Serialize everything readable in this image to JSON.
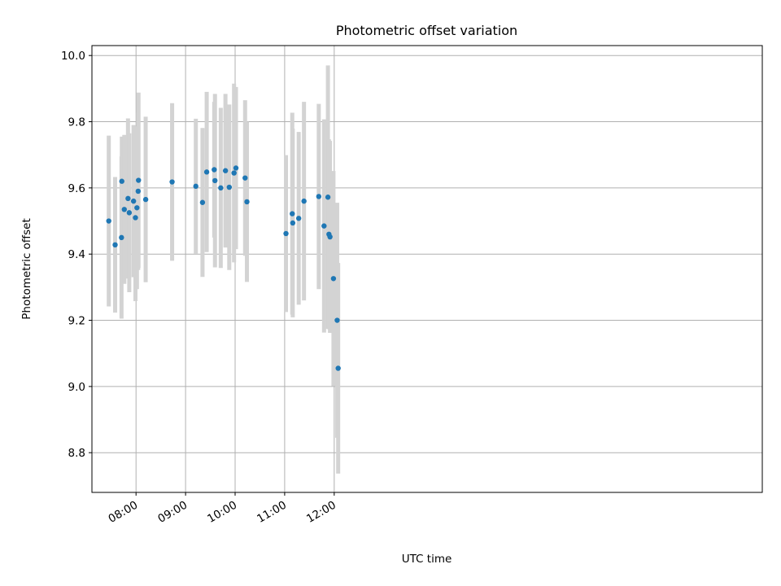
{
  "chart_data": {
    "type": "scatter",
    "title": "Photometric offset variation",
    "xlabel": "UTC time",
    "ylabel": "Photometric offset",
    "x_unit": "minutes since 00:00 UTC",
    "xlim": [
      426.6,
      1238.4
    ],
    "ylim": [
      8.68,
      10.03
    ],
    "grid": true,
    "x_ticks": [
      {
        "value": 480,
        "label": "08:00"
      },
      {
        "value": 540,
        "label": "09:00"
      },
      {
        "value": 600,
        "label": "10:00"
      },
      {
        "value": 660,
        "label": "11:00"
      },
      {
        "value": 720,
        "label": "12:00"
      }
    ],
    "y_ticks": [
      {
        "value": 8.8,
        "label": "8.8"
      },
      {
        "value": 9.0,
        "label": "9.0"
      },
      {
        "value": 9.2,
        "label": "9.2"
      },
      {
        "value": 9.4,
        "label": "9.4"
      },
      {
        "value": 9.6,
        "label": "9.6"
      },
      {
        "value": 9.8,
        "label": "9.8"
      },
      {
        "value": 10.0,
        "label": "10.0"
      }
    ],
    "marker_color": "#1f77b4",
    "errorbar_color": "#d3d3d3",
    "points": [
      {
        "x": 447.0,
        "y": 9.5,
        "err": 0.258
      },
      {
        "x": 454.7,
        "y": 9.428,
        "err": 0.205
      },
      {
        "x": 462.4,
        "y": 9.45,
        "err": 0.245
      },
      {
        "x": 462.8,
        "y": 9.62,
        "err": 0.135
      },
      {
        "x": 465.8,
        "y": 9.535,
        "err": 0.225
      },
      {
        "x": 470.3,
        "y": 9.568,
        "err": 0.242
      },
      {
        "x": 471.8,
        "y": 9.525,
        "err": 0.24
      },
      {
        "x": 477.0,
        "y": 9.56,
        "err": 0.23
      },
      {
        "x": 479.3,
        "y": 9.51,
        "err": 0.252
      },
      {
        "x": 481.1,
        "y": 9.54,
        "err": 0.246
      },
      {
        "x": 482.6,
        "y": 9.59,
        "err": 0.238
      },
      {
        "x": 483.0,
        "y": 9.623,
        "err": 0.265
      },
      {
        "x": 491.7,
        "y": 9.565,
        "err": 0.25
      },
      {
        "x": 523.7,
        "y": 9.618,
        "err": 0.238
      },
      {
        "x": 552.4,
        "y": 9.605,
        "err": 0.204
      },
      {
        "x": 560.5,
        "y": 9.556,
        "err": 0.225
      },
      {
        "x": 565.6,
        "y": 9.648,
        "err": 0.242
      },
      {
        "x": 574.7,
        "y": 9.655,
        "err": 0.205
      },
      {
        "x": 575.6,
        "y": 9.622,
        "err": 0.262
      },
      {
        "x": 582.6,
        "y": 9.6,
        "err": 0.242
      },
      {
        "x": 588.3,
        "y": 9.652,
        "err": 0.232
      },
      {
        "x": 592.9,
        "y": 9.602,
        "err": 0.25
      },
      {
        "x": 598.7,
        "y": 9.645,
        "err": 0.27
      },
      {
        "x": 601.0,
        "y": 9.66,
        "err": 0.245
      },
      {
        "x": 612.1,
        "y": 9.63,
        "err": 0.235
      },
      {
        "x": 614.3,
        "y": 9.558,
        "err": 0.242
      },
      {
        "x": 661.6,
        "y": 9.462,
        "err": 0.237
      },
      {
        "x": 669.2,
        "y": 9.522,
        "err": 0.305
      },
      {
        "x": 669.8,
        "y": 9.494,
        "err": 0.285
      },
      {
        "x": 677.0,
        "y": 9.508,
        "err": 0.261
      },
      {
        "x": 683.4,
        "y": 9.56,
        "err": 0.3
      },
      {
        "x": 701.3,
        "y": 9.574,
        "err": 0.28
      },
      {
        "x": 707.7,
        "y": 9.485,
        "err": 0.322
      },
      {
        "x": 712.4,
        "y": 9.572,
        "err": 0.398
      },
      {
        "x": 713.6,
        "y": 9.46,
        "err": 0.287
      },
      {
        "x": 714.9,
        "y": 9.452,
        "err": 0.29
      },
      {
        "x": 719.1,
        "y": 9.326,
        "err": 0.325
      },
      {
        "x": 723.6,
        "y": 9.2,
        "err": 0.355
      },
      {
        "x": 724.8,
        "y": 9.055,
        "err": 0.318
      }
    ]
  }
}
